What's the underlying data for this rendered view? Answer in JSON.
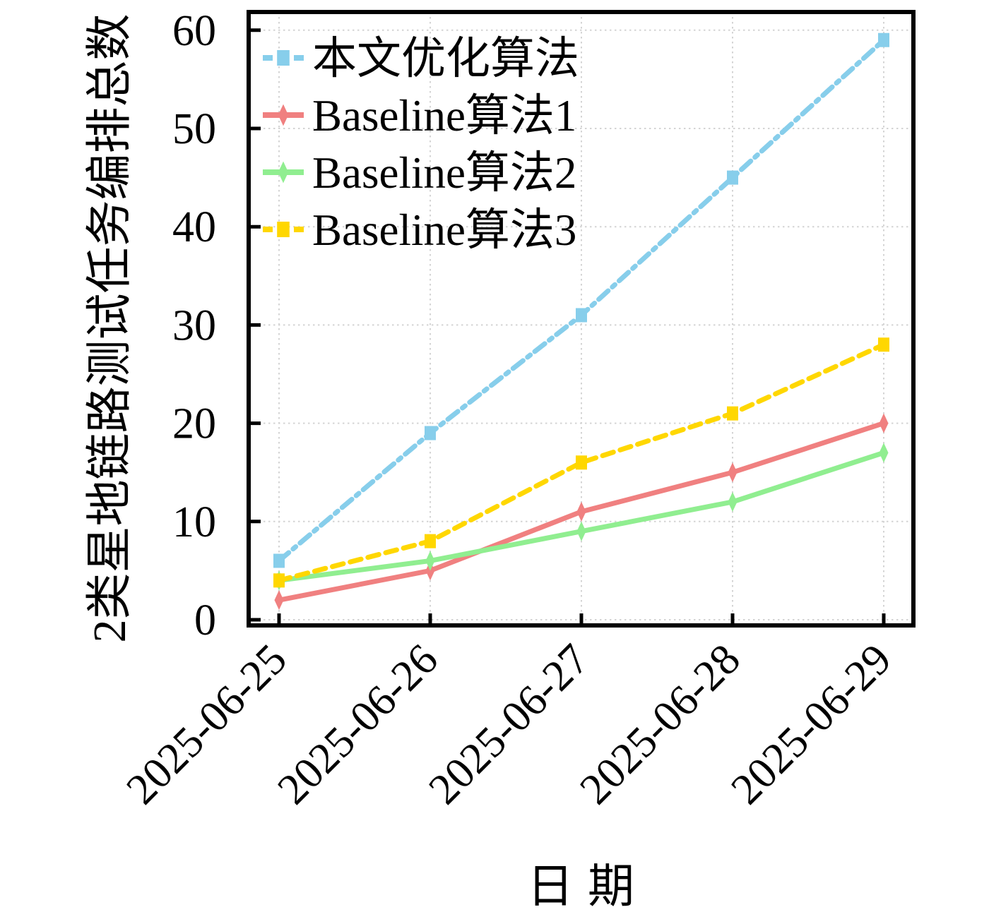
{
  "figure": {
    "background": "#ffffff",
    "frame_color": "#000000",
    "grid_color": "#d4d4d4",
    "tick_color": "#000000"
  },
  "chart_data": {
    "type": "line",
    "title": "",
    "xlabel": "日期",
    "ylabel": "2类星地链路测试任务编排总数",
    "categories": [
      "2025-06-25",
      "2025-06-26",
      "2025-06-27",
      "2025-06-28",
      "2025-06-29"
    ],
    "yticks": [
      0,
      10,
      20,
      30,
      40,
      50,
      60
    ],
    "ytick_labels": [
      "0",
      "10",
      "20",
      "30",
      "40",
      "50",
      "60"
    ],
    "ylim": [
      -0.6,
      61.9
    ],
    "grid": true,
    "grid_style": "dotted",
    "legend_position": "upper-left",
    "legend_frame": false,
    "xtick_rotation": 45,
    "series": [
      {
        "name": "本文优化算法",
        "color": "#87CEEB",
        "linestyle": "dashdot",
        "marker": "square",
        "values": [
          6,
          19,
          31,
          45,
          59
        ]
      },
      {
        "name": "Baseline算法1",
        "color": "#F08080",
        "linestyle": "solid",
        "marker": "thin-diamond",
        "values": [
          2,
          5,
          11,
          15,
          20
        ]
      },
      {
        "name": "Baseline算法2",
        "color": "#90EE90",
        "linestyle": "solid",
        "marker": "thin-diamond",
        "values": [
          4,
          6,
          9,
          12,
          17
        ]
      },
      {
        "name": "Baseline算法3",
        "color": "#FFD700",
        "linestyle": "dashed",
        "marker": "square",
        "values": [
          4,
          8,
          16,
          21,
          28
        ]
      }
    ]
  }
}
